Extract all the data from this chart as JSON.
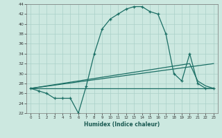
{
  "xlabel": "Humidex (Indice chaleur)",
  "bg_color": "#cce8e0",
  "line_color": "#1a6e64",
  "grid_color": "#aad0c8",
  "xlim": [
    -0.5,
    23.5
  ],
  "ylim": [
    22,
    44
  ],
  "xticks": [
    0,
    1,
    2,
    3,
    4,
    5,
    6,
    7,
    8,
    9,
    10,
    11,
    12,
    13,
    14,
    15,
    16,
    17,
    18,
    19,
    20,
    21,
    22,
    23
  ],
  "yticks": [
    22,
    24,
    26,
    28,
    30,
    32,
    34,
    36,
    38,
    40,
    42,
    44
  ],
  "series": [
    {
      "x": [
        0,
        1,
        2,
        3,
        4,
        5,
        6,
        7,
        8,
        9,
        10,
        11,
        12,
        13,
        14,
        15,
        16,
        17,
        18,
        19,
        20,
        21,
        22,
        23
      ],
      "y": [
        27,
        26.5,
        26,
        25,
        25,
        25,
        22,
        27.5,
        34,
        39,
        41,
        42,
        43,
        43.5,
        43.5,
        42.5,
        42,
        38,
        30,
        28.5,
        34,
        28,
        27,
        27
      ],
      "marker": "+"
    },
    {
      "x": [
        0,
        23
      ],
      "y": [
        27,
        32
      ],
      "marker": null
    },
    {
      "x": [
        0,
        23
      ],
      "y": [
        27,
        27
      ],
      "marker": null
    },
    {
      "x": [
        0,
        20,
        21,
        22,
        23
      ],
      "y": [
        27,
        32,
        28.5,
        27.5,
        27
      ],
      "marker": null
    }
  ]
}
